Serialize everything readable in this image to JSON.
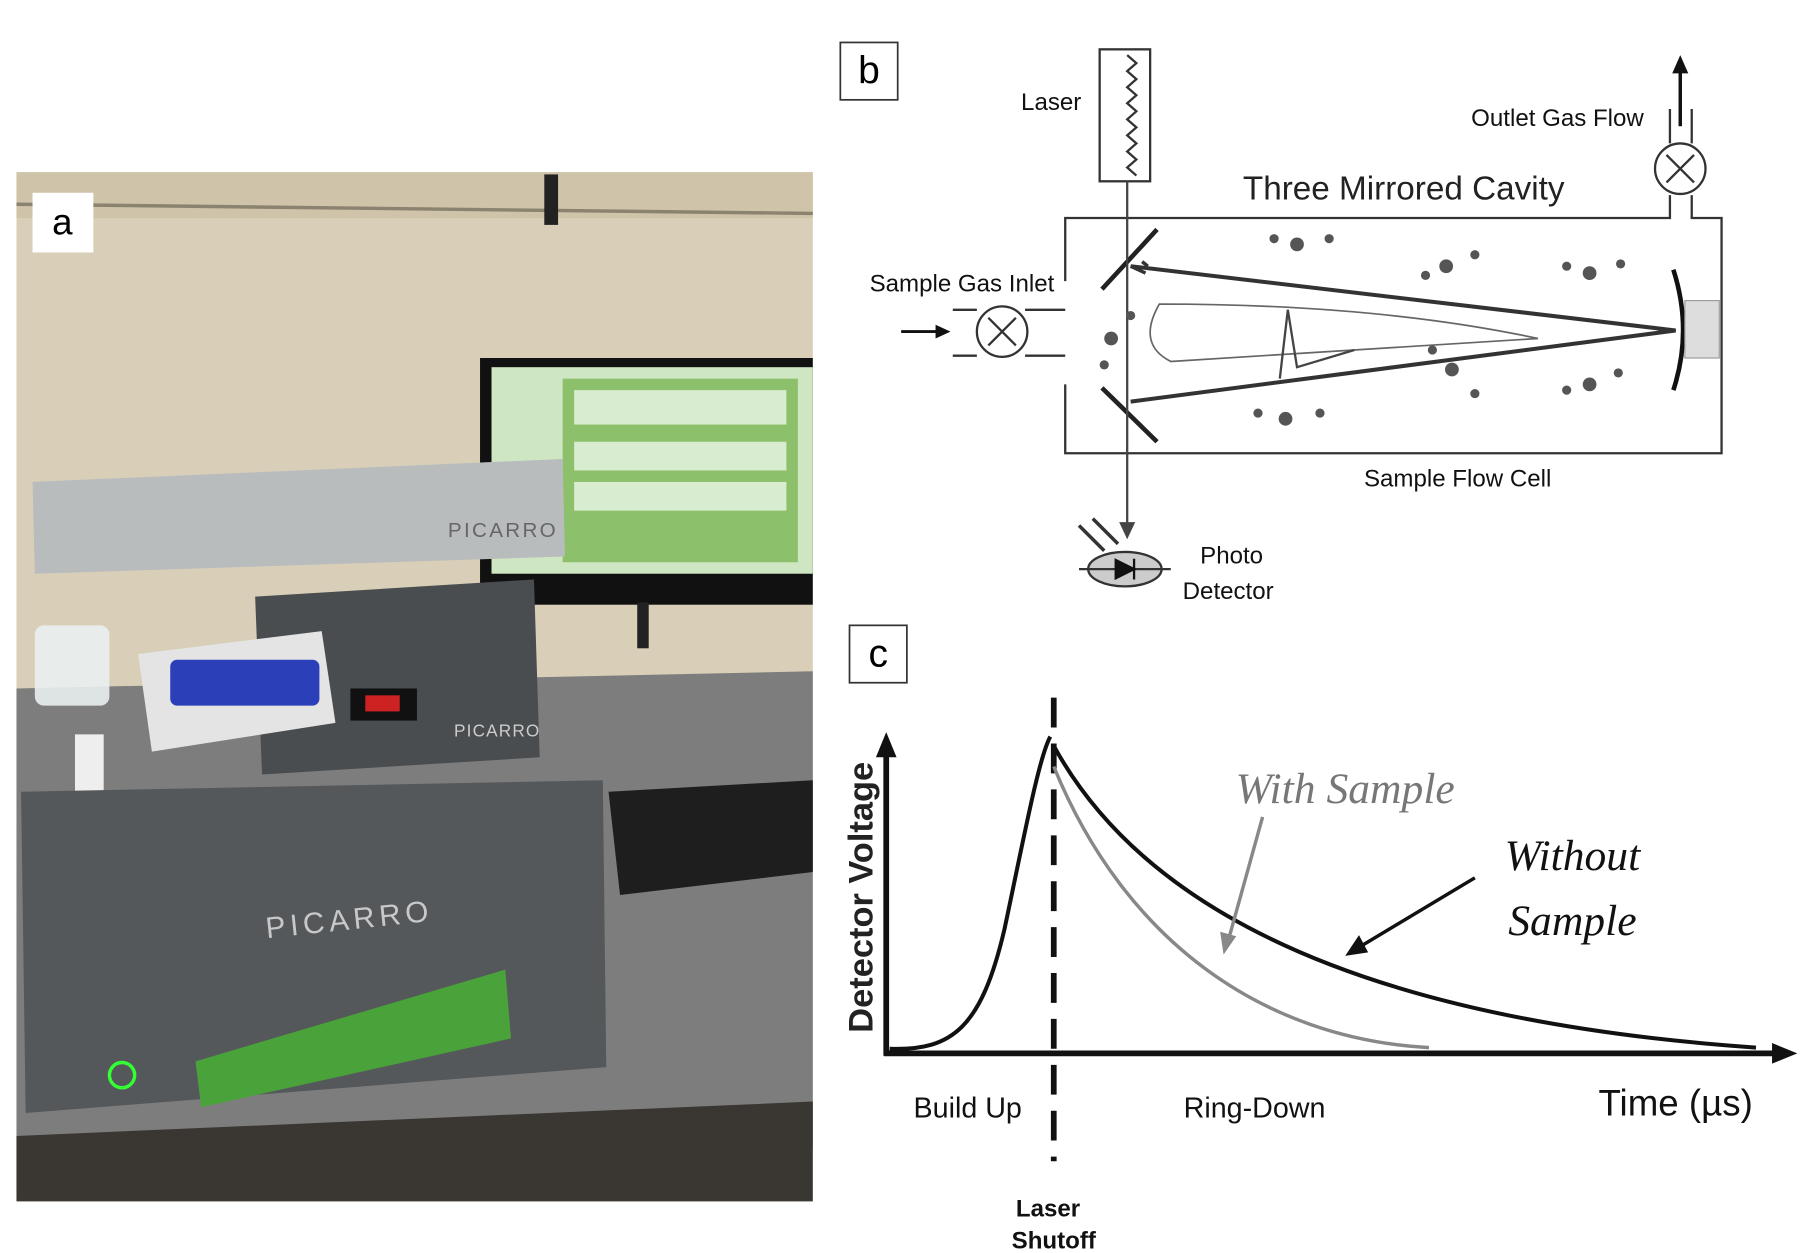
{
  "panel_a": {
    "label": "a",
    "brand": "PICARRO"
  },
  "panel_b": {
    "label": "b",
    "laser": "Laser",
    "outlet": "Outlet Gas Flow",
    "cavity": "Three Mirrored Cavity",
    "inlet": "Sample Gas Inlet",
    "flow_cell": "Sample Flow Cell",
    "detector": [
      "Photo",
      "Detector"
    ]
  },
  "panel_c": {
    "label": "c",
    "y_axis": "Detector Voltage",
    "with_sample": "With Sample",
    "without_sample": [
      "Without",
      "Sample"
    ],
    "build_up": "Build Up",
    "ring_down": "Ring-Down",
    "x_axis": "Time (µs)",
    "shutoff": [
      "Laser",
      "Shutoff"
    ]
  }
}
